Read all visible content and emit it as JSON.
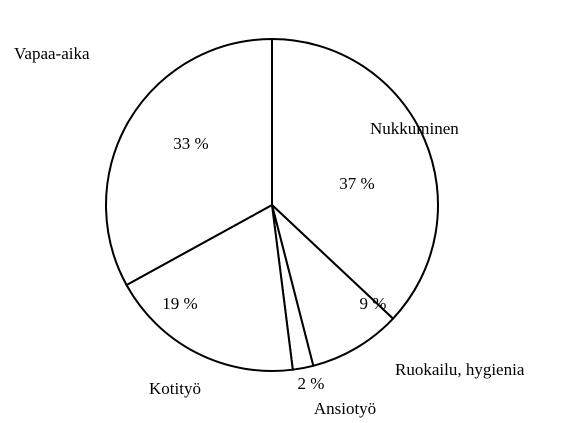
{
  "chart_data": {
    "type": "pie",
    "categories": [
      "Nukkuminen",
      "Ruokailu, hygienia",
      "Ansiotyö",
      "Kotityö",
      "Vapaa-aika"
    ],
    "values": [
      37,
      9,
      2,
      19,
      33
    ],
    "value_labels": [
      "37 %",
      "9 %",
      "2 %",
      "19 %",
      "33 %"
    ],
    "color": "#ffffff"
  }
}
